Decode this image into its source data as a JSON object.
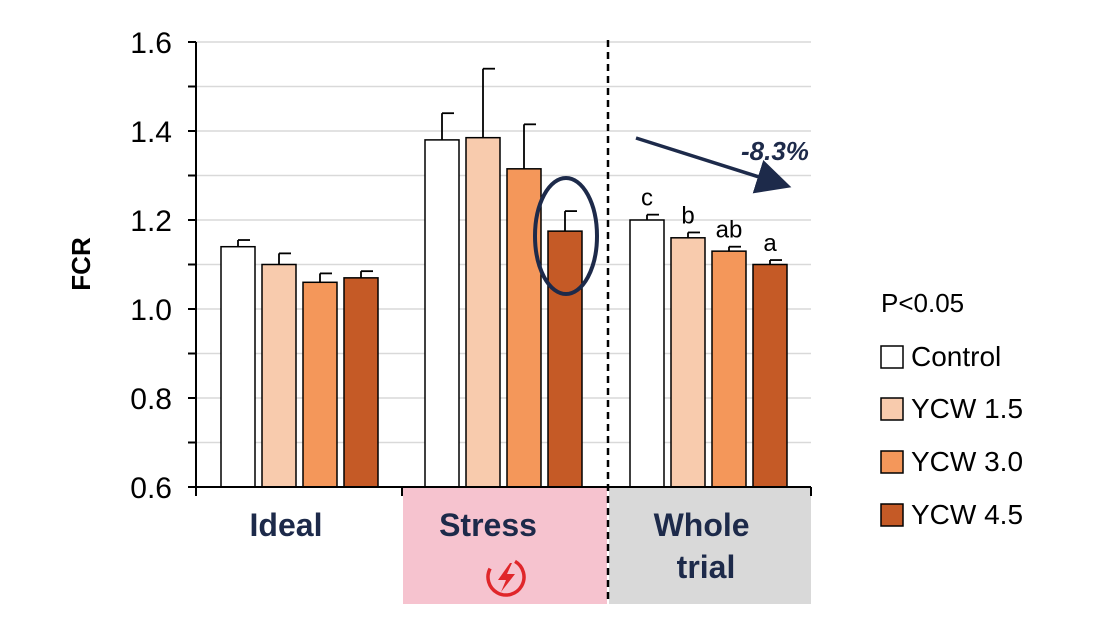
{
  "chart_data": {
    "type": "bar",
    "ylabel": "FCR",
    "ylim": [
      0.6,
      1.6
    ],
    "yticks": [
      "1.6",
      "1.4",
      "1.2",
      "1.0",
      "0.8",
      "0.6"
    ],
    "grid": true,
    "categories": [
      {
        "label": "Ideal",
        "background": "#ffffff"
      },
      {
        "label": "Stress",
        "background": "#f6c3cf",
        "icon": "lightning-circle-icon"
      },
      {
        "label": "Whole trial",
        "background": "#d9d9d9"
      }
    ],
    "series": [
      {
        "name": "Control",
        "color": "#ffffff",
        "values": [
          1.14,
          1.38,
          1.2
        ],
        "errors": [
          0.015,
          0.06,
          0.012
        ]
      },
      {
        "name": "YCW 1.5",
        "color": "#f8cbad",
        "values": [
          1.1,
          1.385,
          1.16
        ],
        "errors": [
          0.025,
          0.155,
          0.012
        ]
      },
      {
        "name": "YCW 3.0",
        "color": "#f4975a",
        "values": [
          1.06,
          1.315,
          1.13
        ],
        "errors": [
          0.02,
          0.1,
          0.01
        ]
      },
      {
        "name": "YCW 4.5",
        "color": "#c55a26",
        "values": [
          1.07,
          1.175,
          1.1
        ],
        "errors": [
          0.015,
          0.045,
          0.01
        ]
      }
    ],
    "significance_letters": {
      "group": "Whole trial",
      "letters": [
        "c",
        "b",
        "ab",
        "a"
      ]
    },
    "annotations": {
      "change_label": "-8.3%",
      "p_value": "P<0.05",
      "highlight": "Stress YCW 4.5 circled"
    },
    "legend_position": "right"
  }
}
